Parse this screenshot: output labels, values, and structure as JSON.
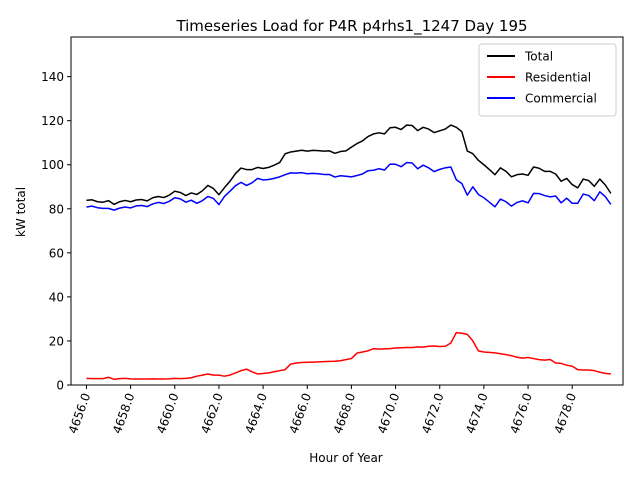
{
  "chart_data": {
    "type": "line",
    "title": "Timeseries Load for P4R p4rhs1_1247  Day 195",
    "xlabel": "Hour of Year",
    "ylabel": "kW total",
    "xlim": [
      4655.3,
      4680.3
    ],
    "ylim": [
      0,
      158
    ],
    "xticks": [
      4656,
      4658,
      4660,
      4662,
      4664,
      4666,
      4668,
      4670,
      4672,
      4674,
      4676,
      4678
    ],
    "xtick_labels": [
      "4656.0",
      "4658.0",
      "4660.0",
      "4662.0",
      "4664.0",
      "4666.0",
      "4668.0",
      "4670.0",
      "4672.0",
      "4674.0",
      "4676.0",
      "4678.0"
    ],
    "yticks": [
      0,
      20,
      40,
      60,
      80,
      100,
      120,
      140
    ],
    "ytick_labels": [
      "0",
      "20",
      "40",
      "60",
      "80",
      "100",
      "120",
      "140"
    ],
    "grid": false,
    "legend_position": "top-right",
    "x": [
      4656.0,
      4656.25,
      4656.5,
      4656.75,
      4657.0,
      4657.25,
      4657.5,
      4657.75,
      4658.0,
      4658.25,
      4658.5,
      4658.75,
      4659.0,
      4659.25,
      4659.5,
      4659.75,
      4660.0,
      4660.25,
      4660.5,
      4660.75,
      4661.0,
      4661.25,
      4661.5,
      4661.75,
      4662.0,
      4662.25,
      4662.5,
      4662.75,
      4663.0,
      4663.25,
      4663.5,
      4663.75,
      4664.0,
      4664.25,
      4664.5,
      4664.75,
      4665.0,
      4665.25,
      4665.5,
      4665.75,
      4666.0,
      4666.25,
      4666.5,
      4666.75,
      4667.0,
      4667.25,
      4667.5,
      4667.75,
      4668.0,
      4668.25,
      4668.5,
      4668.75,
      4669.0,
      4669.25,
      4669.5,
      4669.75,
      4670.0,
      4670.25,
      4670.5,
      4670.75,
      4671.0,
      4671.25,
      4671.5,
      4671.75,
      4672.0,
      4672.25,
      4672.5,
      4672.75,
      4673.0,
      4673.25,
      4673.5,
      4673.75,
      4674.0,
      4674.25,
      4674.5,
      4674.75,
      4675.0,
      4675.25,
      4675.5,
      4675.75,
      4676.0,
      4676.25,
      4676.5,
      4676.75,
      4677.0,
      4677.25,
      4677.5,
      4677.75,
      4678.0,
      4678.25,
      4678.5,
      4678.75,
      4679.0,
      4679.25,
      4679.5,
      4679.75
    ],
    "series": [
      {
        "name": "Total",
        "color": "#000000",
        "values": [
          83.8,
          84.1,
          83.2,
          83.0,
          83.7,
          82.0,
          83.2,
          83.8,
          83.2,
          84.0,
          84.2,
          83.6,
          85.0,
          85.6,
          85.1,
          86.2,
          88.0,
          87.4,
          86.0,
          87.2,
          86.5,
          88.2,
          90.6,
          89.2,
          86.4,
          89.6,
          92.5,
          96.0,
          98.5,
          97.8,
          97.8,
          98.8,
          98.3,
          98.8,
          99.8,
          101.0,
          105.0,
          105.8,
          106.2,
          106.6,
          106.2,
          106.5,
          106.4,
          106.2,
          106.3,
          105.2,
          106.0,
          106.3,
          108.0,
          109.6,
          110.8,
          112.8,
          114.0,
          114.5,
          114.0,
          116.8,
          117.0,
          116.0,
          118.0,
          117.8,
          115.5,
          117.0,
          116.2,
          114.6,
          115.4,
          116.2,
          118.0,
          117.0,
          115.0,
          106.2,
          105.0,
          102.0,
          100.0,
          97.8,
          95.5,
          98.6,
          97.0,
          94.5,
          95.5,
          95.8,
          95.2,
          99.0,
          98.4,
          97.0,
          97.0,
          95.8,
          92.5,
          93.8,
          91.0,
          89.5,
          93.5,
          92.8,
          90.2,
          93.5,
          90.8,
          87.0
        ]
      },
      {
        "name": "Residential",
        "color": "#ff0000",
        "values": [
          3.0,
          2.9,
          2.9,
          2.9,
          3.5,
          2.6,
          2.9,
          3.0,
          2.8,
          2.7,
          2.7,
          2.7,
          2.8,
          2.7,
          2.7,
          2.8,
          3.0,
          2.9,
          3.0,
          3.3,
          4.0,
          4.5,
          5.0,
          4.5,
          4.5,
          4.0,
          4.5,
          5.5,
          6.5,
          7.2,
          6.0,
          5.0,
          5.2,
          5.5,
          6.0,
          6.5,
          7.0,
          9.5,
          10.0,
          10.2,
          10.3,
          10.4,
          10.5,
          10.6,
          10.7,
          10.8,
          11.0,
          11.5,
          12.0,
          14.5,
          15.0,
          15.5,
          16.5,
          16.3,
          16.4,
          16.5,
          16.8,
          16.9,
          17.0,
          17.0,
          17.3,
          17.2,
          17.6,
          17.7,
          17.5,
          17.6,
          19.0,
          23.8,
          23.5,
          23.0,
          20.0,
          15.5,
          15.0,
          14.8,
          14.6,
          14.2,
          13.8,
          13.3,
          12.6,
          12.2,
          12.5,
          12.0,
          11.5,
          11.3,
          11.6,
          10.0,
          9.8,
          9.0,
          8.5,
          7.0,
          6.8,
          6.8,
          6.5,
          5.8,
          5.3,
          5.0
        ]
      },
      {
        "name": "Commercial",
        "color": "#0000ff",
        "values": [
          80.8,
          81.2,
          80.5,
          80.2,
          80.2,
          79.4,
          80.3,
          80.8,
          80.4,
          81.3,
          81.5,
          81.0,
          82.2,
          82.9,
          82.4,
          83.4,
          85.0,
          84.5,
          83.0,
          83.9,
          82.5,
          83.7,
          85.6,
          84.7,
          81.9,
          85.6,
          88.0,
          90.5,
          92.0,
          90.6,
          91.8,
          93.8,
          93.1,
          93.3,
          93.8,
          94.5,
          95.5,
          96.3,
          96.2,
          96.4,
          95.9,
          96.1,
          95.9,
          95.6,
          95.6,
          94.4,
          95.0,
          94.8,
          94.5,
          95.1,
          95.8,
          97.3,
          97.5,
          98.2,
          97.6,
          100.3,
          100.2,
          99.1,
          101.0,
          100.8,
          98.2,
          99.8,
          98.6,
          96.9,
          97.9,
          98.6,
          99.0,
          93.2,
          91.5,
          86.2,
          90.0,
          86.5,
          85.0,
          83.0,
          80.9,
          84.4,
          83.2,
          81.2,
          82.9,
          83.6,
          82.7,
          87.0,
          86.9,
          86.0,
          85.4,
          85.8,
          82.7,
          84.8,
          82.5,
          82.5,
          86.7,
          86.0,
          83.7,
          87.7,
          85.5,
          82.0
        ]
      }
    ]
  }
}
